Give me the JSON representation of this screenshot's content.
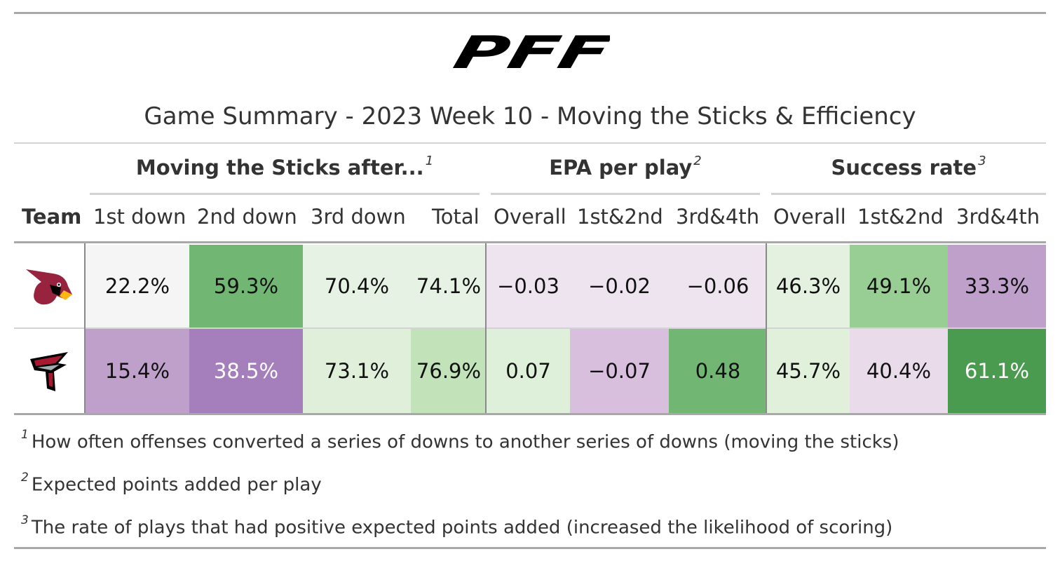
{
  "logo_text": "PFF",
  "title": "Game Summary - 2023 Week 10 - Moving the Sticks & Efficiency",
  "spanners": [
    {
      "label": "Moving the Sticks after...",
      "mark": "1"
    },
    {
      "label": "EPA per play",
      "mark": "2"
    },
    {
      "label": "Success rate",
      "mark": "3"
    }
  ],
  "columns": [
    "Team",
    "1st down",
    "2nd down",
    "3rd down",
    "Total",
    "Overall",
    "1st&2nd",
    "3rd&4th",
    "Overall",
    "1st&2nd",
    "3rd&4th"
  ],
  "teams": [
    {
      "logo": "arizona-cardinals-logo-icon",
      "values": [
        "22.2%",
        "59.3%",
        "70.4%",
        "74.1%",
        "−0.03",
        "−0.02",
        "−0.06",
        "46.3%",
        "49.1%",
        "33.3%"
      ],
      "colors": [
        "#f5f5f5",
        "#71b673",
        "#e6f2e3",
        "#e6f2e3",
        "#eee4ef",
        "#eee4ef",
        "#eee4ef",
        "#e4f1e0",
        "#98cd94",
        "#bea0cb"
      ],
      "text_colors": [
        "#111111",
        "#111111",
        "#111111",
        "#111111",
        "#111111",
        "#111111",
        "#111111",
        "#111111",
        "#111111",
        "#111111"
      ]
    },
    {
      "logo": "atlanta-falcons-logo-icon",
      "values": [
        "15.4%",
        "38.5%",
        "73.1%",
        "76.9%",
        "0.07",
        "−0.07",
        "0.48",
        "45.7%",
        "40.4%",
        "61.1%"
      ],
      "colors": [
        "#bea0cb",
        "#a57fbc",
        "#dfefda",
        "#c2e2ba",
        "#def0d9",
        "#d8bfde",
        "#71b673",
        "#e0f0db",
        "#e9dbea",
        "#4a9a4f"
      ],
      "text_colors": [
        "#111111",
        "#ffffff",
        "#111111",
        "#111111",
        "#111111",
        "#111111",
        "#111111",
        "#111111",
        "#111111",
        "#ffffff"
      ]
    }
  ],
  "footnotes": [
    {
      "mark": "1",
      "text": "How often offenses converted a series of downs to another series of downs (moving the sticks)"
    },
    {
      "mark": "2",
      "text": "Expected points added per play"
    },
    {
      "mark": "3",
      "text": "The rate of plays that had positive expected points added (increased the likelihood of scoring)"
    }
  ],
  "chart_data": {
    "type": "table",
    "title": "Game Summary - 2023 Week 10 - Moving the Sticks & Efficiency",
    "column_groups": [
      {
        "name": "Moving the Sticks after...",
        "columns": [
          "1st down",
          "2nd down",
          "3rd down",
          "Total"
        ]
      },
      {
        "name": "EPA per play",
        "columns": [
          "Overall",
          "1st&2nd",
          "3rd&4th"
        ]
      },
      {
        "name": "Success rate",
        "columns": [
          "Overall",
          "1st&2nd",
          "3rd&4th"
        ]
      }
    ],
    "rows": [
      {
        "team": "Arizona Cardinals",
        "values": [
          22.2,
          59.3,
          70.4,
          74.1,
          -0.03,
          -0.02,
          -0.06,
          46.3,
          49.1,
          33.3
        ]
      },
      {
        "team": "Atlanta Falcons",
        "values": [
          15.4,
          38.5,
          73.1,
          76.9,
          0.07,
          -0.07,
          0.48,
          45.7,
          40.4,
          61.1
        ]
      }
    ]
  }
}
